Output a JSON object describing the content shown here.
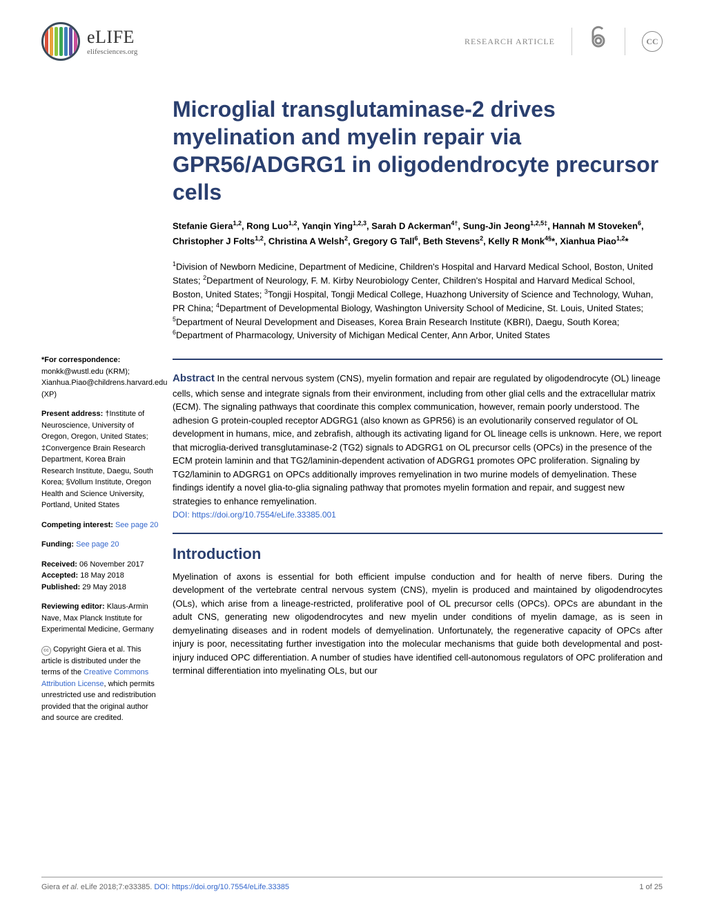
{
  "header": {
    "logo_name": "eLIFE",
    "logo_url": "elifesciences.org",
    "article_type": "RESEARCH ARTICLE",
    "stripe_colors": [
      "#d94f3a",
      "#e8a23c",
      "#8cc63f",
      "#3aa655",
      "#3d7fb8",
      "#5e4fa2",
      "#c94f9a"
    ]
  },
  "title": "Microglial transglutaminase-2 drives myelination and myelin repair via GPR56/ADGRG1 in oligodendrocyte precursor cells",
  "authors_html": "Stefanie Giera<sup>1,2</sup>, Rong Luo<sup>1,2</sup>, Yanqin Ying<sup>1,2,3</sup>, Sarah D Ackerman<sup>4†</sup>, Sung-Jin Jeong<sup>1,2,5‡</sup>, Hannah M Stoveken<sup>6</sup>, Christopher J Folts<sup>1,2</sup>, Christina A Welsh<sup>2</sup>, Gregory G Tall<sup>6</sup>, Beth Stevens<sup>2</sup>, Kelly R Monk<sup>4§</sup>*, Xianhua Piao<sup>1,2</sup>*",
  "affiliations_html": "<sup>1</sup>Division of Newborn Medicine, Department of Medicine, Children's Hospital and Harvard Medical School, Boston, United States; <sup>2</sup>Department of Neurology, F. M. Kirby Neurobiology Center, Children's Hospital and Harvard Medical School, Boston, United States; <sup>3</sup>Tongji Hospital, Tongji Medical College, Huazhong University of Science and Technology, Wuhan, PR China; <sup>4</sup>Department of Developmental Biology, Washington University School of Medicine, St. Louis, United States; <sup>5</sup>Department of Neural Development and Diseases, Korea Brain Research Institute (KBRI), Daegu, South Korea; <sup>6</sup>Department of Pharmacology, University of Michigan Medical Center, Ann Arbor, United States",
  "sidebar": {
    "correspondence_label": "*For correspondence:",
    "correspondence_emails": "monkk@wustl.edu (KRM); Xianhua.Piao@childrens.harvard.edu (XP)",
    "present_label": "Present address:",
    "present_text": "†Institute of Neuroscience, University of Oregon, Oregon, United States; ‡Convergence Brain Research Department, Korea Brain Research Institute, Daegu, South Korea; §Vollum Institute, Oregon Health and Science University, Portland, United States",
    "competing_label": "Competing interest:",
    "competing_link": "See page 20",
    "funding_label": "Funding:",
    "funding_link": "See page 20",
    "received_label": "Received:",
    "received_date": "06 November 2017",
    "accepted_label": "Accepted:",
    "accepted_date": "18 May 2018",
    "published_label": "Published:",
    "published_date": "29 May 2018",
    "reviewing_label": "Reviewing editor:",
    "reviewing_text": "Klaus-Armin Nave, Max Planck Institute for Experimental Medicine, Germany",
    "copyright_text": "Copyright Giera et al. This article is distributed under the terms of the ",
    "copyright_link": "Creative Commons Attribution License",
    "copyright_rest": ", which permits unrestricted use and redistribution provided that the original author and source are credited."
  },
  "abstract": {
    "label": "Abstract",
    "text": "In the central nervous system (CNS), myelin formation and repair are regulated by oligodendrocyte (OL) lineage cells, which sense and integrate signals from their environment, including from other glial cells and the extracellular matrix (ECM). The signaling pathways that coordinate this complex communication, however, remain poorly understood. The adhesion G protein-coupled receptor ADGRG1 (also known as GPR56) is an evolutionarily conserved regulator of OL development in humans, mice, and zebrafish, although its activating ligand for OL lineage cells is unknown. Here, we report that microglia-derived transglutaminase-2 (TG2) signals to ADGRG1 on OL precursor cells (OPCs) in the presence of the ECM protein laminin and that TG2/laminin-dependent activation of ADGRG1 promotes OPC proliferation. Signaling by TG2/laminin to ADGRG1 on OPCs additionally improves remyelination in two murine models of demyelination. These findings identify a novel glia-to-glia signaling pathway that promotes myelin formation and repair, and suggest new strategies to enhance remyelination.",
    "doi": "DOI: https://doi.org/10.7554/eLife.33385.001"
  },
  "intro": {
    "heading": "Introduction",
    "text": "Myelination of axons is essential for both efficient impulse conduction and for health of nerve fibers. During the development of the vertebrate central nervous system (CNS), myelin is produced and maintained by oligodendrocytes (OLs), which arise from a lineage-restricted, proliferative pool of OL precursor cells (OPCs). OPCs are abundant in the adult CNS, generating new oligodendrocytes and new myelin under conditions of myelin damage, as is seen in demyelinating diseases and in rodent models of demyelination. Unfortunately, the regenerative capacity of OPCs after injury is poor, necessitating further investigation into the molecular mechanisms that guide both developmental and post-injury induced OPC differentiation. A number of studies have identified cell-autonomous regulators of OPC proliferation and terminal differentiation into myelinating OLs, but our"
  },
  "footer": {
    "citation_pre": "Giera ",
    "citation_ital": "et al",
    "citation_post": ". eLife 2018;7:e33385. ",
    "doi_link": "DOI: https://doi.org/10.7554/eLife.33385",
    "page": "1 of 25"
  },
  "colors": {
    "brand_blue": "#2a3f6f",
    "link_blue": "#3366cc"
  }
}
